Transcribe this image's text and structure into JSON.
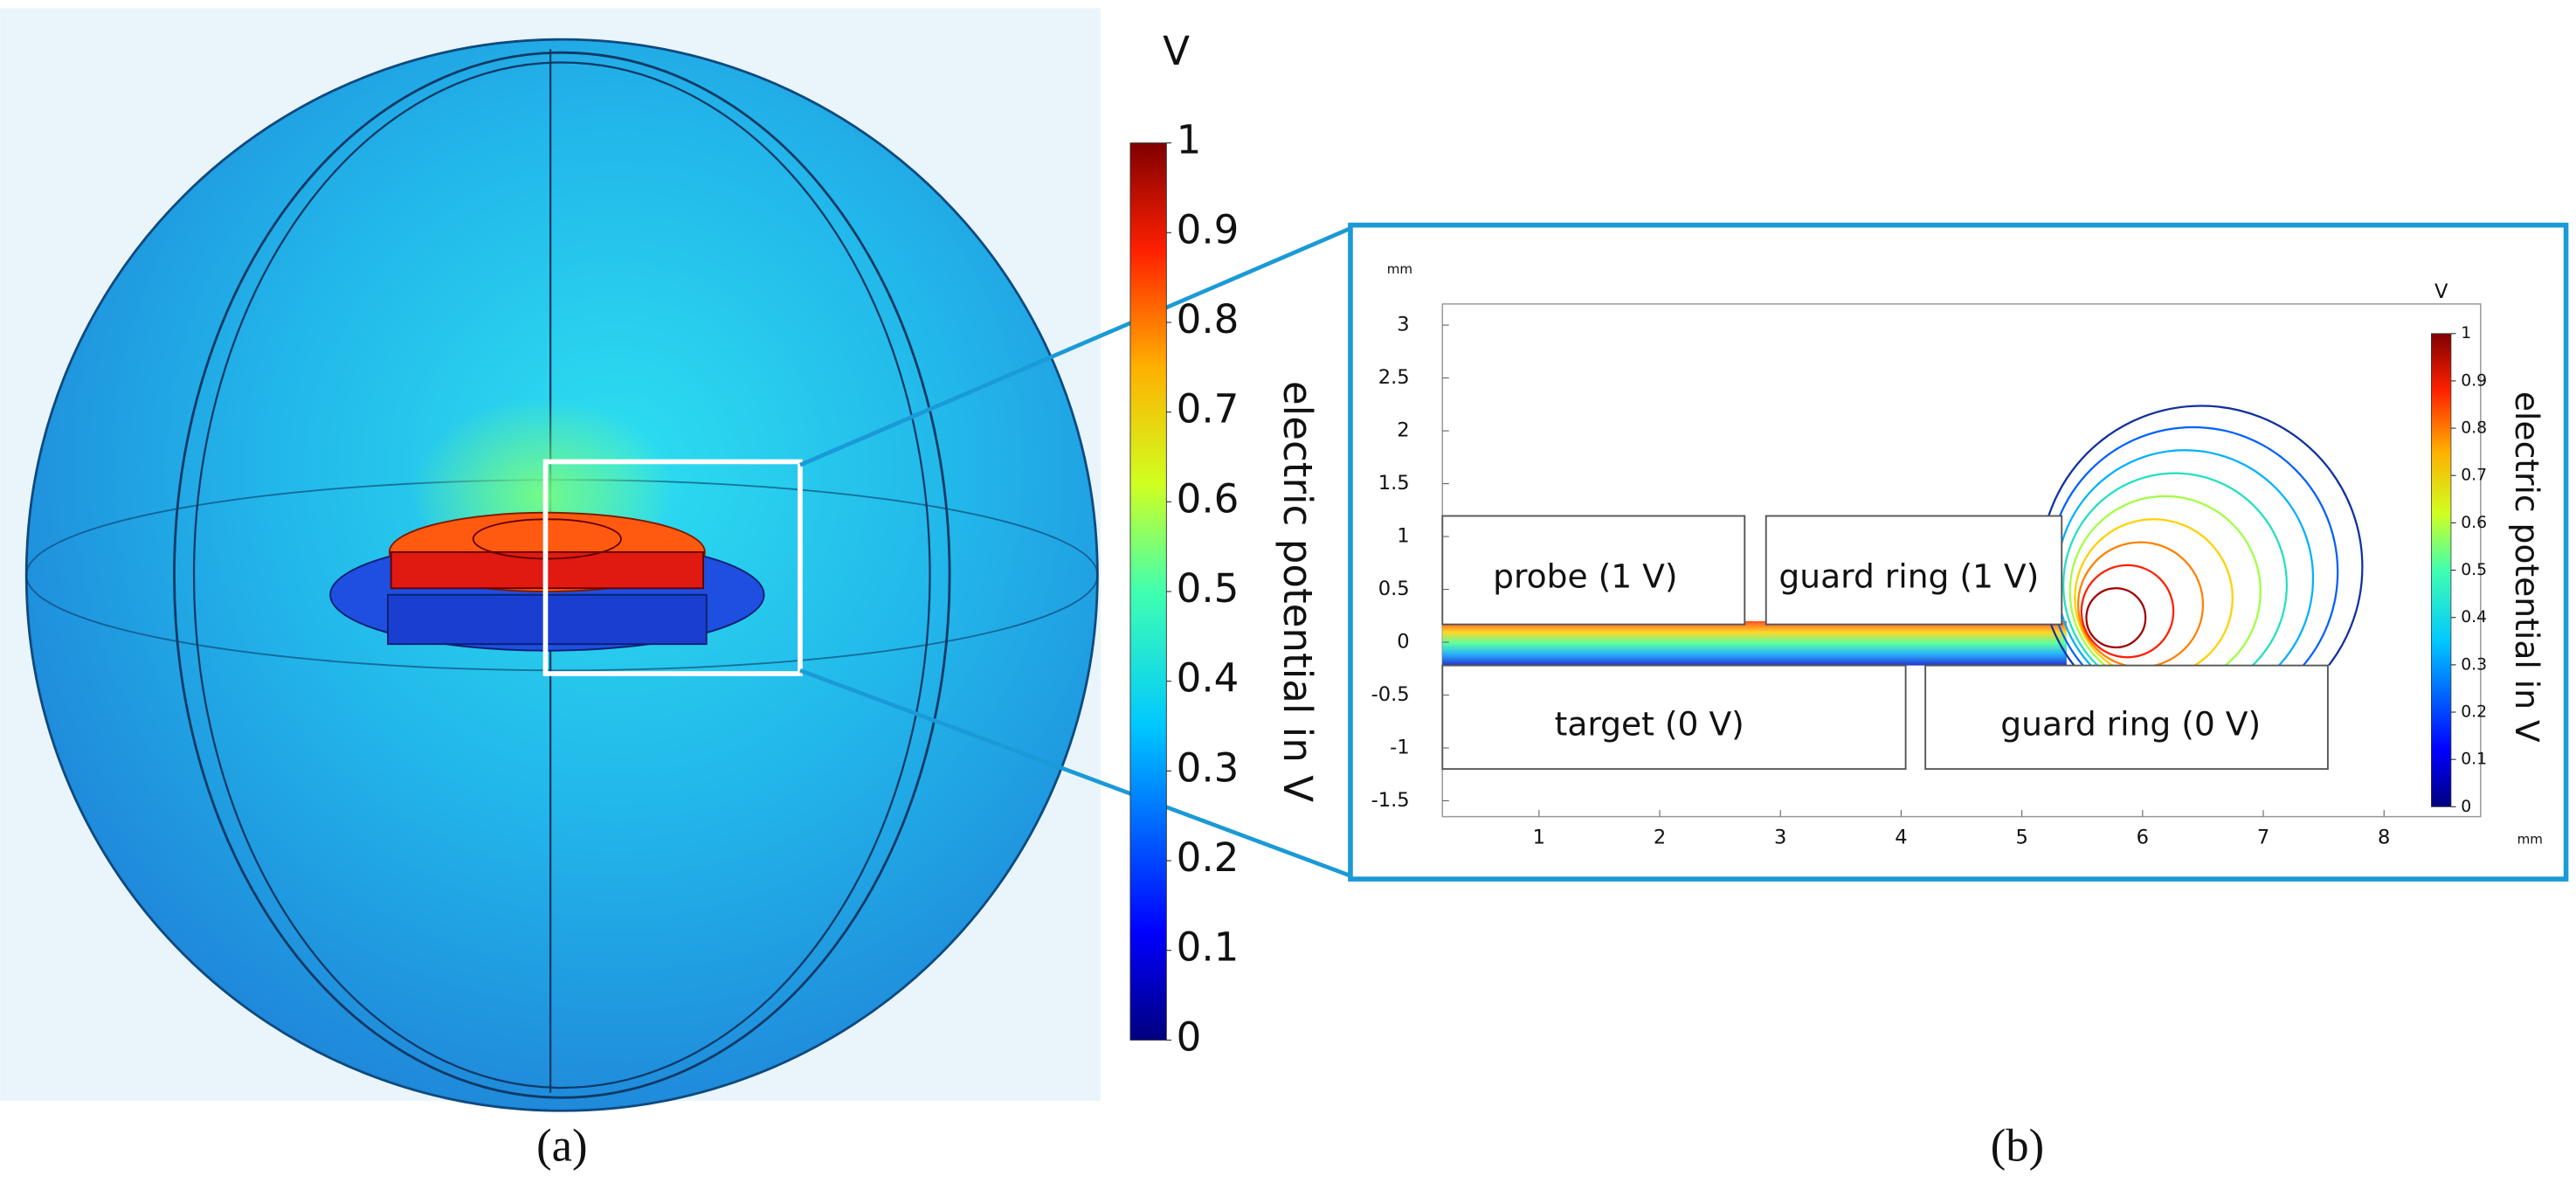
{
  "figure": {
    "panel_a": {
      "label": "(a)",
      "colorbar": {
        "unit": "V",
        "title": "electric potential in V",
        "range": [
          0,
          1
        ],
        "ticks": [
          0,
          0.1,
          0.2,
          0.3,
          0.4,
          0.5,
          0.6,
          0.7,
          0.8,
          0.9,
          1
        ]
      }
    },
    "panel_b": {
      "label": "(b)",
      "x_unit": "mm",
      "y_unit": "mm",
      "xlim": [
        0.2,
        8.8
      ],
      "ylim": [
        -1.65,
        3.2
      ],
      "xticks": [
        1,
        2,
        3,
        4,
        5,
        6,
        7,
        8
      ],
      "yticks": [
        3,
        2.5,
        2,
        1.5,
        1,
        0.5,
        0,
        -0.5,
        -1,
        -1.5
      ],
      "regions": [
        "probe (1 V)",
        "guard ring (1 V)",
        "target (0 V)",
        "guard ring (0 V)"
      ],
      "colorbar": {
        "unit": "V",
        "title": "electric potential in V",
        "range": [
          0,
          1
        ],
        "ticks": [
          0,
          0.1,
          0.2,
          0.3,
          0.4,
          0.5,
          0.6,
          0.7,
          0.8,
          0.9,
          1
        ]
      }
    }
  }
}
